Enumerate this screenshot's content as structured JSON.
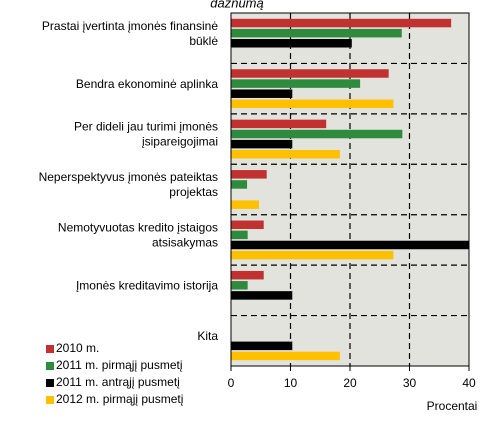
{
  "chart_data": {
    "type": "barh",
    "title": "dažnumą",
    "categories": [
      [
        "Prastai įvertinta įmonės finansinė",
        "būklė"
      ],
      [
        "Bendra ekonominė aplinka"
      ],
      [
        "Per dideli jau turimi įmonės",
        "įsipareigojimai"
      ],
      [
        "Neperspektyvus įmonės pateiktas",
        "projektas"
      ],
      [
        "Nemotyvuotas kredito įstaigos",
        "atsisakymas"
      ],
      [
        "Įmonės kreditavimo istorija"
      ],
      [
        "Kita"
      ]
    ],
    "series": [
      {
        "name": "2010 m.",
        "color": "#c0312f",
        "values": [
          37,
          26.5,
          16,
          6,
          5.5,
          5.5,
          null
        ]
      },
      {
        "name": "2011 m. pirmąjį pusmetį",
        "color": "#2e8b3e",
        "values": [
          28.7,
          21.7,
          28.8,
          2.7,
          2.8,
          2.8,
          null
        ]
      },
      {
        "name": "2011 m. antrąjį pusmetį",
        "color": "#000000",
        "values": [
          20.3,
          10.3,
          10.3,
          null,
          40,
          10.3,
          10.3
        ]
      },
      {
        "name": "2012 m. pirmąjį pusmetį",
        "color": "#ffc000",
        "values": [
          null,
          27.3,
          18.3,
          4.7,
          27.3,
          null,
          18.3
        ]
      }
    ],
    "xlabel": "Procentai",
    "xlim": [
      0,
      40
    ],
    "xticks": [
      0,
      10,
      20,
      30,
      40
    ],
    "grid": true
  }
}
